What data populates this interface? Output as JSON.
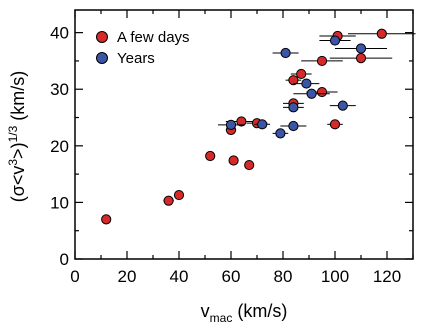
{
  "chart_data": {
    "type": "scatter",
    "xlabel": {
      "main": "v",
      "sub": "mac",
      "unit": " (km/s)"
    },
    "ylabel": {
      "pre": "(σ<v",
      "sup1": "3",
      "mid": ">)",
      "sup2": "1/3",
      "unit": " (km/s)"
    },
    "xlim": [
      0,
      130
    ],
    "ylim": [
      0,
      44
    ],
    "x_ticks": [
      0,
      20,
      40,
      60,
      80,
      100,
      120
    ],
    "y_ticks": [
      0,
      10,
      20,
      30,
      40
    ],
    "grid": false,
    "legend_position": "top-left",
    "series": [
      {
        "name": "A few days",
        "color": "#d62a2a",
        "points": [
          {
            "x": 12,
            "y": 7,
            "xerr": 0
          },
          {
            "x": 36,
            "y": 10.3,
            "xerr": 2
          },
          {
            "x": 40,
            "y": 11.3,
            "xerr": 0
          },
          {
            "x": 52,
            "y": 18.2,
            "xerr": 0
          },
          {
            "x": 60,
            "y": 22.8,
            "xerr": 2
          },
          {
            "x": 61,
            "y": 17.4,
            "xerr": 0
          },
          {
            "x": 64,
            "y": 24.3,
            "xerr": 6
          },
          {
            "x": 67,
            "y": 16.6,
            "xerr": 0
          },
          {
            "x": 70,
            "y": 24,
            "xerr": 4
          },
          {
            "x": 84,
            "y": 31.6,
            "xerr": 3
          },
          {
            "x": 84,
            "y": 27.5,
            "xerr": 4
          },
          {
            "x": 87,
            "y": 32.7,
            "xerr": 4
          },
          {
            "x": 95,
            "y": 35,
            "xerr": 8
          },
          {
            "x": 95,
            "y": 29.5,
            "xerr": 6
          },
          {
            "x": 100,
            "y": 23.8,
            "xerr": 3
          },
          {
            "x": 101,
            "y": 39.4,
            "xerr": 7
          },
          {
            "x": 110,
            "y": 35.5,
            "xerr": 12
          },
          {
            "x": 118,
            "y": 39.8,
            "xerr": 13
          }
        ]
      },
      {
        "name": "Years",
        "color": "#3b55a7",
        "points": [
          {
            "x": 60,
            "y": 23.7,
            "xerr": 5
          },
          {
            "x": 72,
            "y": 23.8,
            "xerr": 3
          },
          {
            "x": 79,
            "y": 22.2,
            "xerr": 3
          },
          {
            "x": 81,
            "y": 36.4,
            "xerr": 5
          },
          {
            "x": 84,
            "y": 26.8,
            "xerr": 4
          },
          {
            "x": 84,
            "y": 23.5,
            "xerr": 5
          },
          {
            "x": 89,
            "y": 31,
            "xerr": 5
          },
          {
            "x": 91,
            "y": 29.2,
            "xerr": 7
          },
          {
            "x": 100,
            "y": 38.6,
            "xerr": 6
          },
          {
            "x": 103,
            "y": 27.1,
            "xerr": 5
          },
          {
            "x": 110,
            "y": 37.2,
            "xerr": 10
          }
        ]
      }
    ]
  }
}
